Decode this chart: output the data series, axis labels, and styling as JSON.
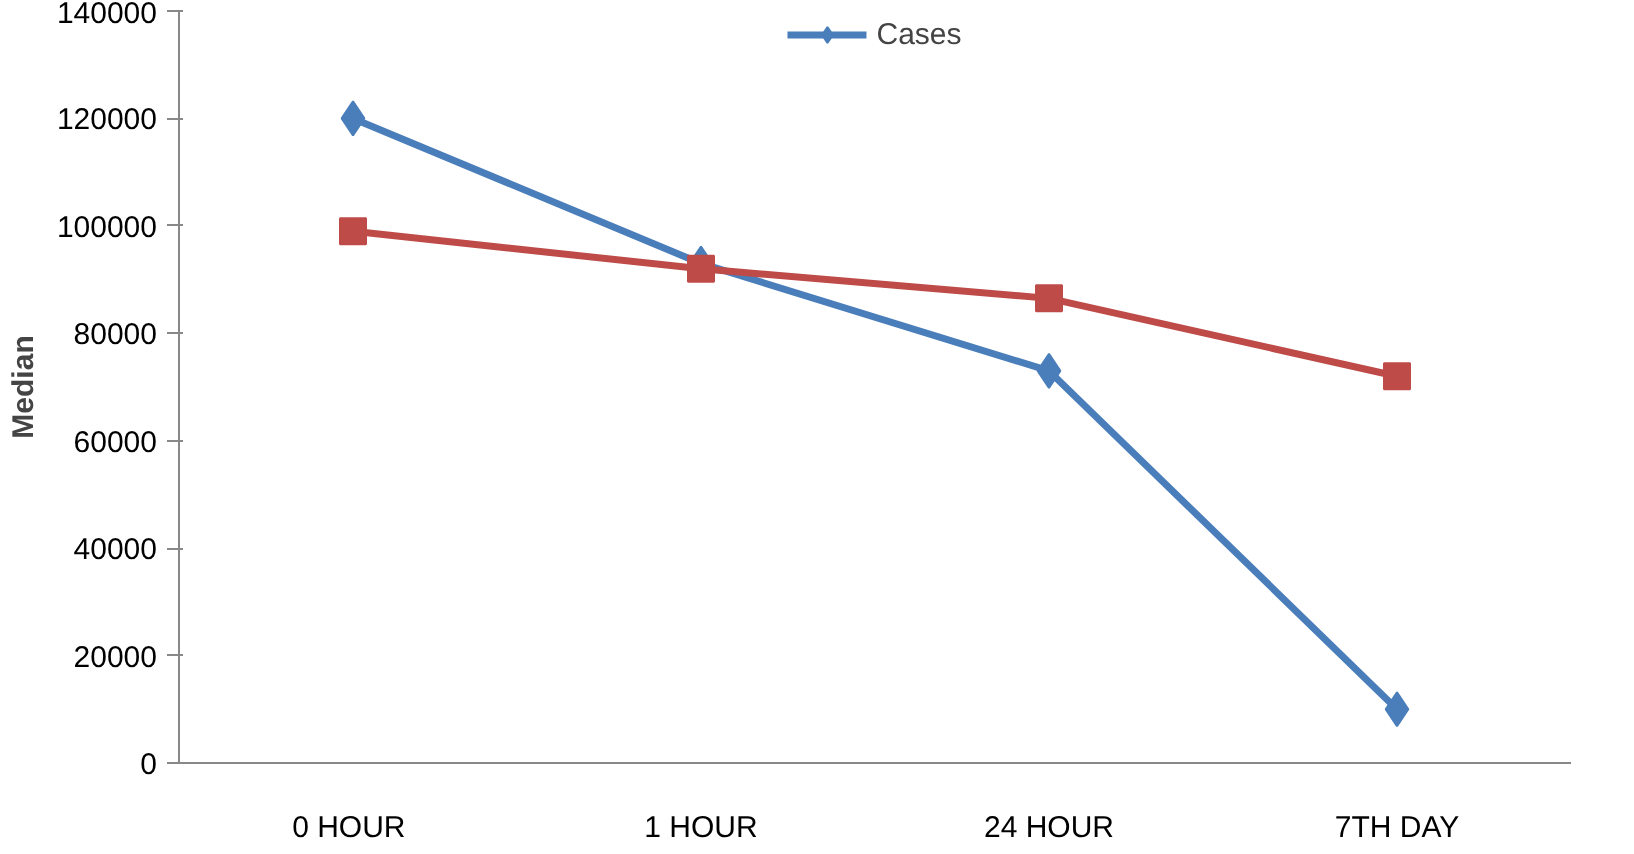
{
  "chart_data": {
    "type": "line",
    "ylabel": "Median",
    "categories": [
      "0  HOUR",
      "1 HOUR",
      "24 HOUR",
      "7TH DAY"
    ],
    "series": [
      {
        "name": "Cases",
        "color": "#4a7ebb",
        "values": [
          120000,
          93000,
          73000,
          10000
        ],
        "marker": "diamond"
      },
      {
        "color": "#be4b48",
        "values": [
          99000,
          92000,
          86500,
          72000
        ],
        "marker": "square"
      }
    ],
    "ylim": [
      0,
      140000
    ],
    "yticks": [
      0,
      20000,
      40000,
      60000,
      80000,
      100000,
      120000,
      140000
    ],
    "grid": false,
    "legend": "top"
  }
}
